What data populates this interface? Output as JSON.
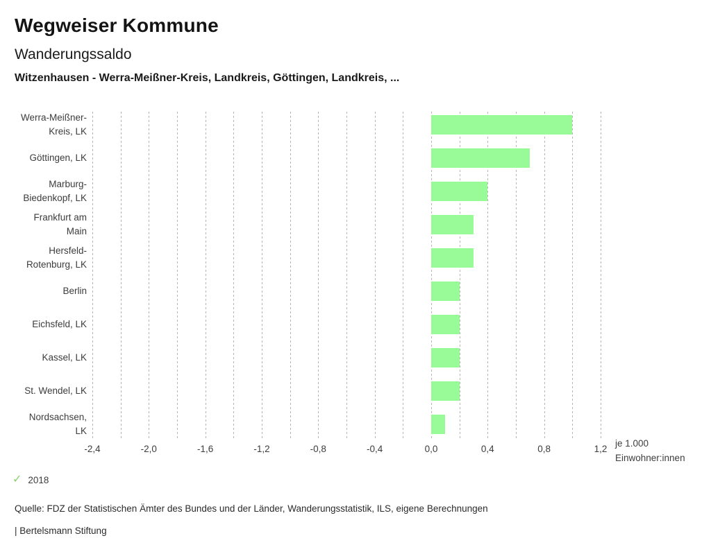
{
  "header": {
    "title": "Wegweiser Kommune",
    "subtitle": "Wanderungssaldo",
    "selection": "Witzenhausen - Werra-Meißner-Kreis, Landkreis, Göttingen, Landkreis, ..."
  },
  "chart_data": {
    "type": "bar",
    "orientation": "horizontal",
    "title": "Wanderungssaldo",
    "xlabel": "je 1.000 Einwohner:innen",
    "categories": [
      "Werra-Meißner-Kreis, LK",
      "Göttingen, LK",
      "Marburg-Biedenkopf, LK",
      "Frankfurt am Main",
      "Hersfeld-Rotenburg, LK",
      "Berlin",
      "Eichsfeld, LK",
      "Kassel, LK",
      "St. Wendel, LK",
      "Nordsachsen, LK"
    ],
    "category_label_lines": [
      [
        "Werra-Meißner-",
        "Kreis, LK"
      ],
      [
        "Göttingen, LK"
      ],
      [
        "Marburg-",
        "Biedenkopf, LK"
      ],
      [
        "Frankfurt am",
        "Main"
      ],
      [
        "Hersfeld-",
        "Rotenburg, LK"
      ],
      [
        "Berlin"
      ],
      [
        "Eichsfeld, LK"
      ],
      [
        "Kassel, LK"
      ],
      [
        "St. Wendel, LK"
      ],
      [
        "Nordsachsen,",
        "LK"
      ]
    ],
    "series": [
      {
        "name": "2018",
        "values": [
          1.0,
          0.7,
          0.4,
          0.3,
          0.3,
          0.2,
          0.2,
          0.2,
          0.2,
          0.1
        ]
      }
    ],
    "xlim": [
      -2.4,
      1.2
    ],
    "x_major_step": 0.4,
    "x_minor_step": 0.2,
    "x_tick_labels": [
      "-2,4",
      "-2,0",
      "-1,6",
      "-1,2",
      "-0,8",
      "-0,4",
      "0,0",
      "0,4",
      "0,8",
      "1,2"
    ],
    "x_axis_note_lines": [
      "je 1.000",
      "Einwohner:innen"
    ],
    "grid": true,
    "legend_position": "bottom-left",
    "bar_color": "#98FB98",
    "grid_color": "#b5b5b5"
  },
  "legend": {
    "marker": "check-icon",
    "marker_color": "#8CD06E",
    "label": "2018"
  },
  "source_line": "Quelle: FDZ der Statistischen Ämter des Bundes und der Länder, Wanderungsstatistik, ILS, eigene Berechnungen",
  "footer": "| Bertelsmann Stiftung"
}
